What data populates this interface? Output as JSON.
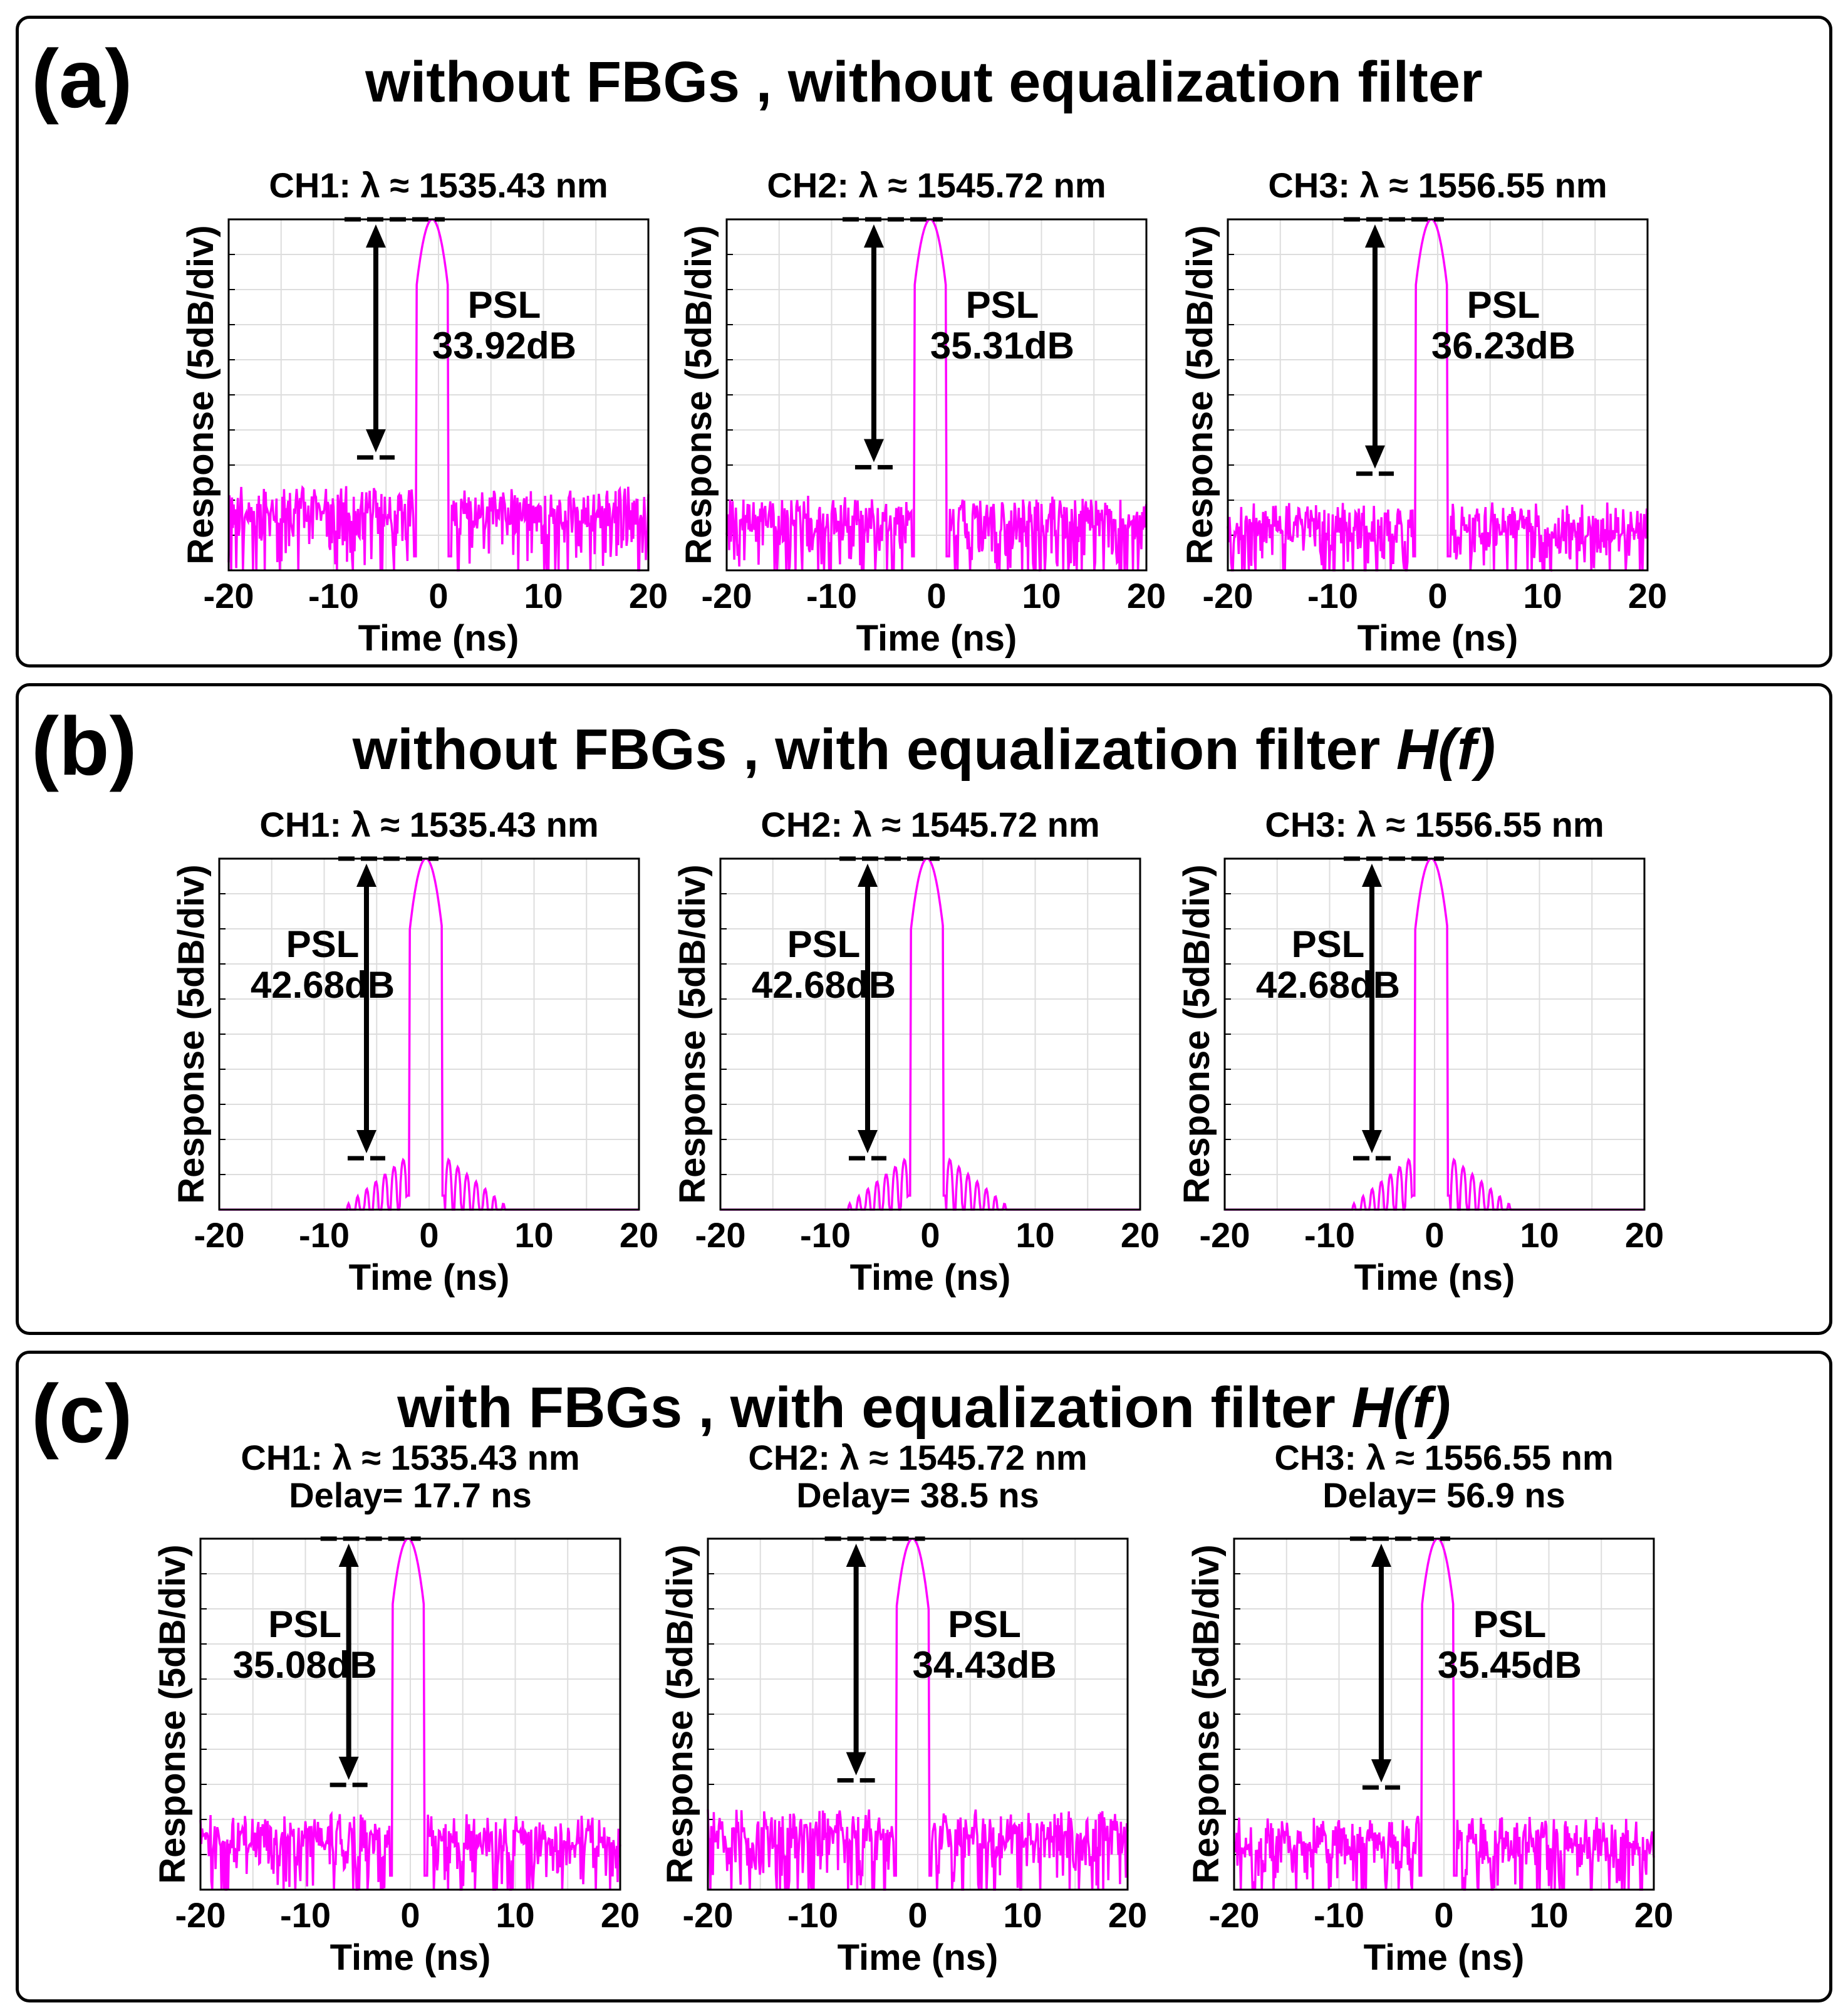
{
  "colors": {
    "trace": "#ff00ff",
    "frame": "#000000",
    "grid": "#dddddd"
  },
  "panels": [
    {
      "label": "(a)",
      "title": "without FBGs , without equalization filter",
      "title_italic": ""
    },
    {
      "label": "(b)",
      "title": "without FBGs ,  with equalization filter ",
      "title_italic": "H(f)"
    },
    {
      "label": "(c)",
      "title": "with FBGs ,  with equalization filter ",
      "title_italic": "H(f)"
    }
  ],
  "chart_data": [
    {
      "panel": "a",
      "type": "line",
      "title": "CH1: λ ≈ 1535.43 nm",
      "delay": "",
      "xlabel": "Time (ns)",
      "ylabel": "Response (5dB/div)",
      "xlim": [
        -20,
        20
      ],
      "ylim": [
        -50,
        0
      ],
      "xticks": [
        "-20",
        "-10",
        "0",
        "10",
        "20"
      ],
      "peak_ns": -0.6,
      "psl_db": 33.92,
      "psl_label": "PSL",
      "psl_value": "33.92dB",
      "psl_side": "right",
      "sidelobe": "noisy",
      "seed": 11
    },
    {
      "panel": "a",
      "type": "line",
      "title": "CH2: λ ≈ 1545.72 nm",
      "delay": "",
      "xlabel": "Time (ns)",
      "ylabel": "Response (5dB/div)",
      "xlim": [
        -20,
        20
      ],
      "ylim": [
        -50,
        0
      ],
      "xticks": [
        "-20",
        "-10",
        "0",
        "10",
        "20"
      ],
      "peak_ns": -0.6,
      "psl_db": 35.31,
      "psl_label": "PSL",
      "psl_value": "35.31dB",
      "psl_side": "right",
      "sidelobe": "noisy",
      "seed": 23
    },
    {
      "panel": "a",
      "type": "line",
      "title": "CH3: λ ≈ 1556.55 nm",
      "delay": "",
      "xlabel": "Time (ns)",
      "ylabel": "Response (5dB/div)",
      "xlim": [
        -20,
        20
      ],
      "ylim": [
        -50,
        0
      ],
      "xticks": [
        "-20",
        "-10",
        "0",
        "10",
        "20"
      ],
      "peak_ns": -0.6,
      "psl_db": 36.23,
      "psl_label": "PSL",
      "psl_value": "36.23dB",
      "psl_side": "right",
      "sidelobe": "noisy",
      "seed": 37
    },
    {
      "panel": "b",
      "type": "line",
      "title": "CH1: λ ≈ 1535.43 nm",
      "delay": "",
      "xlabel": "Time (ns)",
      "ylabel": "Response (5dB/div)",
      "xlim": [
        -20,
        20
      ],
      "ylim": [
        -50,
        0
      ],
      "xticks": [
        "-20",
        "-10",
        "0",
        "10",
        "20"
      ],
      "peak_ns": -0.3,
      "psl_db": 42.68,
      "psl_label": "PSL",
      "psl_value": "42.68dB",
      "psl_side": "left",
      "sidelobe": "equalized",
      "seed": 41
    },
    {
      "panel": "b",
      "type": "line",
      "title": "CH2: λ ≈ 1545.72 nm",
      "delay": "",
      "xlabel": "Time (ns)",
      "ylabel": "Response (5dB/div)",
      "xlim": [
        -20,
        20
      ],
      "ylim": [
        -50,
        0
      ],
      "xticks": [
        "-20",
        "-10",
        "0",
        "10",
        "20"
      ],
      "peak_ns": -0.3,
      "psl_db": 42.68,
      "psl_label": "PSL",
      "psl_value": "42.68dB",
      "psl_side": "left",
      "sidelobe": "equalized",
      "seed": 43
    },
    {
      "panel": "b",
      "type": "line",
      "title": "CH3: λ ≈ 1556.55 nm",
      "delay": "",
      "xlabel": "Time (ns)",
      "ylabel": "Response (5dB/div)",
      "xlim": [
        -20,
        20
      ],
      "ylim": [
        -50,
        0
      ],
      "xticks": [
        "-20",
        "-10",
        "0",
        "10",
        "20"
      ],
      "peak_ns": -0.3,
      "psl_db": 42.68,
      "psl_label": "PSL",
      "psl_value": "42.68dB",
      "psl_side": "left",
      "sidelobe": "equalized",
      "seed": 47
    },
    {
      "panel": "c",
      "type": "line",
      "title": "CH1: λ ≈ 1535.43 nm",
      "delay": "Delay= 17.7 ns",
      "xlabel": "Time (ns)",
      "ylabel": "Response (5dB/div)",
      "xlim": [
        -20,
        20
      ],
      "ylim": [
        -50,
        0
      ],
      "xticks": [
        "-20",
        "-10",
        "0",
        "10",
        "20"
      ],
      "peak_ns": -0.2,
      "psl_db": 35.08,
      "psl_label": "PSL",
      "psl_value": "35.08dB",
      "psl_side": "left",
      "sidelobe": "noisy",
      "seed": 53
    },
    {
      "panel": "c",
      "type": "line",
      "title": "CH2: λ ≈ 1545.72 nm",
      "delay": "Delay= 38.5 ns",
      "xlabel": "Time (ns)",
      "ylabel": "Response (5dB/div)",
      "xlim": [
        -20,
        20
      ],
      "ylim": [
        -50,
        0
      ],
      "xticks": [
        "-20",
        "-10",
        "0",
        "10",
        "20"
      ],
      "peak_ns": -0.5,
      "psl_db": 34.43,
      "psl_label": "PSL",
      "psl_value": "34.43dB",
      "psl_side": "right",
      "sidelobe": "noisy",
      "seed": 59
    },
    {
      "panel": "c",
      "type": "line",
      "title": "CH3: λ ≈ 1556.55 nm",
      "delay": "Delay= 56.9 ns",
      "xlabel": "Time (ns)",
      "ylabel": "Response (5dB/div)",
      "xlim": [
        -20,
        20
      ],
      "ylim": [
        -50,
        0
      ],
      "xticks": [
        "-20",
        "-10",
        "0",
        "10",
        "20"
      ],
      "peak_ns": -0.6,
      "psl_db": 35.45,
      "psl_label": "PSL",
      "psl_value": "35.45dB",
      "psl_side": "right",
      "sidelobe": "noisy",
      "seed": 61
    }
  ]
}
